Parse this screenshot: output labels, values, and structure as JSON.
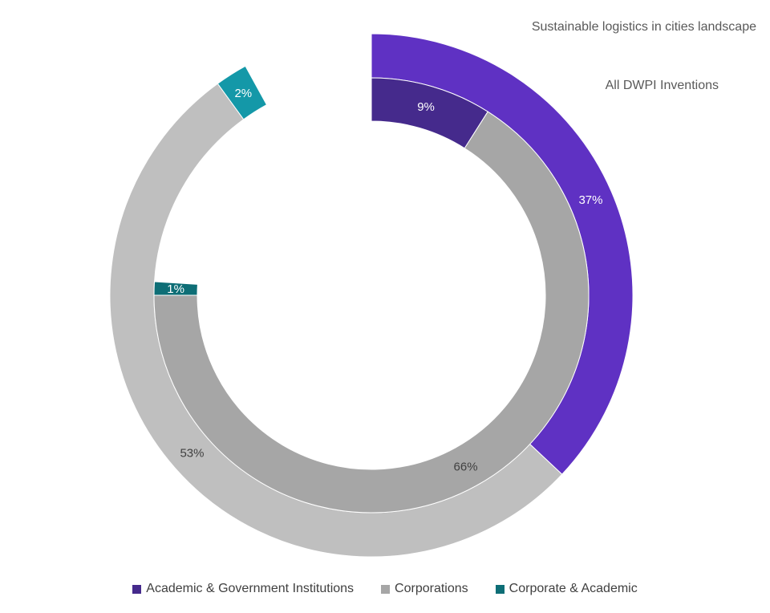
{
  "chart_data": {
    "type": "pie",
    "subtype": "multi-level donut (partial rings)",
    "rings": [
      {
        "name": "Sustainable logistics in cities landscape",
        "position": "outer",
        "slices": [
          {
            "category": "Academic & Government Institutions",
            "value": 37,
            "label": "37%",
            "color": "#5f31c3"
          },
          {
            "category": "Corporations",
            "value": 53,
            "label": "53%",
            "color": "#bfbfbf"
          },
          {
            "category": "Corporate & Academic",
            "value": 2,
            "label": "2%",
            "color": "#1498a8"
          }
        ]
      },
      {
        "name": "All DWPI Inventions",
        "position": "inner",
        "slices": [
          {
            "category": "Academic & Government Institutions",
            "value": 9,
            "label": "9%",
            "color": "#452a8c"
          },
          {
            "category": "Corporations",
            "value": 66,
            "label": "66%",
            "color": "#a6a6a6"
          },
          {
            "category": "Corporate & Academic",
            "value": 1,
            "label": "1%",
            "color": "#0e6e76"
          }
        ]
      }
    ],
    "legend": {
      "placement": "bottom",
      "entries": [
        {
          "label": "Academic & Government Institutions",
          "color": "#452a8c"
        },
        {
          "label": "Corporations",
          "color": "#a6a6a6"
        },
        {
          "label": "Corporate & Academic",
          "color": "#0e6e76"
        }
      ]
    },
    "text_colors": {
      "light": "#ffffff",
      "dark": "#404040"
    }
  }
}
